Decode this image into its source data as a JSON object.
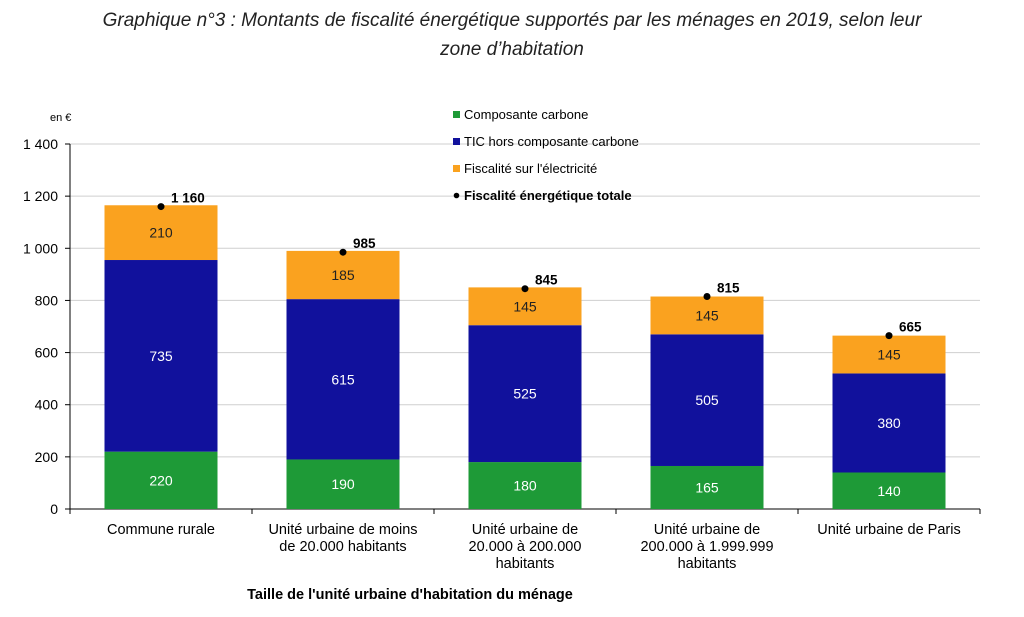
{
  "title_line1": "Graphique n°3 : Montants de fiscalité énergétique supportés par les ménages en 2019, selon leur",
  "title_line2": "zone d’habitation",
  "chart_data": {
    "type": "bar",
    "stacked": true,
    "unit_label": "en €",
    "xlabel": "Taille de l'unité urbaine d'habitation du ménage",
    "ylabel": "",
    "ylim": [
      0,
      1400
    ],
    "yticks": [
      0,
      200,
      400,
      600,
      800,
      1000,
      1200,
      1400
    ],
    "ytick_labels": [
      "0",
      "200",
      "400",
      "600",
      "800",
      "1 000",
      "1 200",
      "1 400"
    ],
    "grid": "horizontal",
    "legend_position": "top-center",
    "categories": [
      [
        "Commune rurale"
      ],
      [
        "Unité urbaine de moins",
        "de 20.000 habitants"
      ],
      [
        "Unité urbaine de",
        "20.000 à 200.000",
        "habitants"
      ],
      [
        "Unité urbaine de",
        "200.000 à 1.999.999",
        "habitants"
      ],
      [
        "Unité urbaine de Paris"
      ]
    ],
    "series": [
      {
        "name": "Composante carbone",
        "color": "#1e9a37",
        "label_color": "#ffffff",
        "values": [
          220,
          190,
          180,
          165,
          140
        ]
      },
      {
        "name": "TIC hors composante carbone",
        "color": "#11119c",
        "label_color": "#ffffff",
        "values": [
          735,
          615,
          525,
          505,
          380
        ]
      },
      {
        "name": "Fiscalité sur l'électricité",
        "color": "#faa21f",
        "label_color": "#222222",
        "values": [
          210,
          185,
          145,
          145,
          145
        ]
      }
    ],
    "totals": {
      "name": "Fiscalité énergétique totale",
      "marker": "dot",
      "values": [
        1160,
        985,
        845,
        815,
        665
      ],
      "labels": [
        "1 160",
        "985",
        "845",
        "815",
        "665"
      ]
    }
  }
}
